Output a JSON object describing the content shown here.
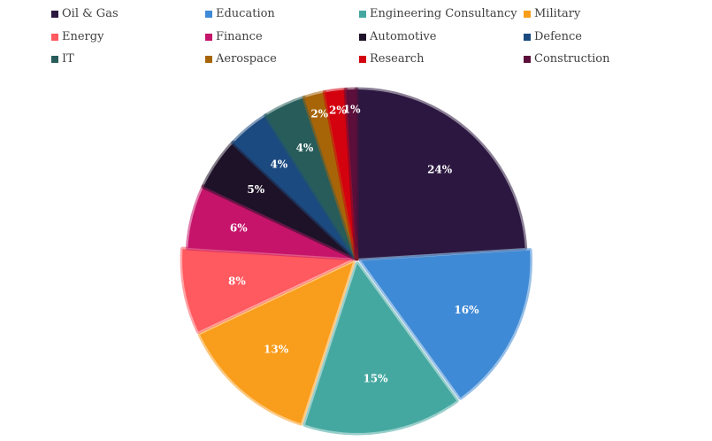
{
  "chart_data": {
    "type": "pie",
    "title": "",
    "legend_position": "top",
    "slices": [
      {
        "label": "Oil & Gas",
        "value": 24,
        "display": "24%",
        "color": "#2b1740"
      },
      {
        "label": "Education",
        "value": 16,
        "display": "16%",
        "color": "#3f8ad6"
      },
      {
        "label": "Engineering Consultancy",
        "value": 15,
        "display": "15%",
        "color": "#45a8a0"
      },
      {
        "label": "Military",
        "value": 13,
        "display": "13%",
        "color": "#f99d1c"
      },
      {
        "label": "Energy",
        "value": 8,
        "display": "8%",
        "color": "#ff5a5f"
      },
      {
        "label": "Finance",
        "value": 6,
        "display": "6%",
        "color": "#c5146a"
      },
      {
        "label": "Automotive",
        "value": 5,
        "display": "5%",
        "color": "#1e1228"
      },
      {
        "label": "Defence",
        "value": 4,
        "display": "4%",
        "color": "#1b4a80"
      },
      {
        "label": "IT",
        "value": 4,
        "display": "4%",
        "color": "#275c5a"
      },
      {
        "label": "Aerospace",
        "value": 2,
        "display": "2%",
        "color": "#a86508"
      },
      {
        "label": "Research",
        "value": 2,
        "display": "2%",
        "color": "#d4020f"
      },
      {
        "label": "Construction",
        "value": 1,
        "display": "1%",
        "color": "#5c0f3a"
      }
    ]
  }
}
